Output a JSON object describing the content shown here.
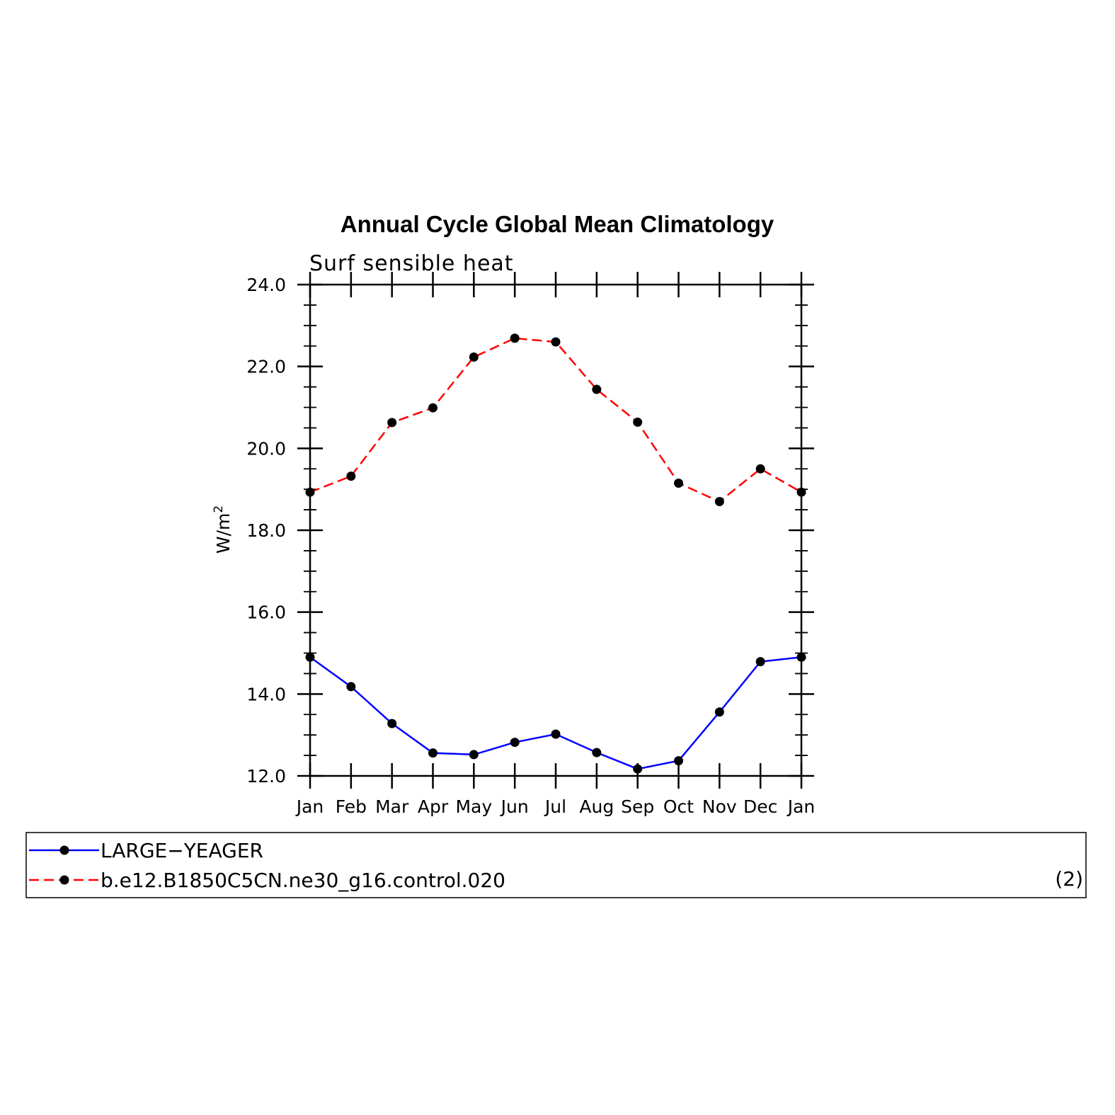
{
  "chart_data": {
    "type": "line",
    "title": "Annual Cycle Global Mean Climatology",
    "subtitle": "Surf sensible heat",
    "ylabel_base": "W/m",
    "ylabel_sup": "2",
    "xlabel": "",
    "categories": [
      "Jan",
      "Feb",
      "Mar",
      "Apr",
      "May",
      "Jun",
      "Jul",
      "Aug",
      "Sep",
      "Oct",
      "Nov",
      "Dec",
      "Jan"
    ],
    "ylim": [
      12.0,
      24.0
    ],
    "yticks": [
      "12.0",
      "14.0",
      "16.0",
      "18.0",
      "20.0",
      "22.0",
      "24.0"
    ],
    "grid": false,
    "legend_position": "bottom",
    "legend_note": "(2)",
    "series": [
      {
        "name": "LARGE−YEAGER",
        "color": "#0000ff",
        "dash": "solid",
        "values": [
          14.9,
          14.18,
          13.28,
          12.56,
          12.52,
          12.82,
          13.02,
          12.57,
          12.17,
          12.37,
          13.56,
          14.79,
          14.9
        ]
      },
      {
        "name": "b.e12.B1850C5CN.ne30_g16.control.020",
        "color": "#ff0000",
        "dash": "dashed",
        "values": [
          18.93,
          19.32,
          20.63,
          20.99,
          22.23,
          22.69,
          22.6,
          21.44,
          20.64,
          19.15,
          18.7,
          19.5,
          18.93
        ]
      }
    ]
  }
}
